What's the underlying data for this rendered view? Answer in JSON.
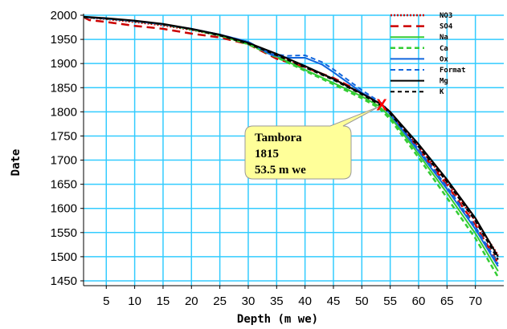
{
  "chart_data": {
    "type": "line",
    "xlabel": "Depth (m we)",
    "ylabel": "Date",
    "xlim": [
      1,
      75
    ],
    "ylim": [
      1440,
      2000
    ],
    "x_ticks": [
      5,
      10,
      15,
      20,
      25,
      30,
      35,
      40,
      45,
      50,
      55,
      60,
      65,
      70
    ],
    "y_ticks": [
      1450,
      1500,
      1550,
      1600,
      1650,
      1700,
      1750,
      1800,
      1850,
      1900,
      1950,
      2000
    ],
    "grid": true,
    "grid_color": "#33ccff",
    "legend_position": "top-right",
    "series": [
      {
        "name": "NO3",
        "color": "#cc0000",
        "dash": "2,2",
        "width": 2.5,
        "points": [
          [
            1,
            1996
          ],
          [
            5,
            1992
          ],
          [
            10,
            1986
          ],
          [
            15,
            1979
          ],
          [
            20,
            1970
          ],
          [
            25,
            1958
          ],
          [
            30,
            1942
          ],
          [
            35,
            1918
          ],
          [
            40,
            1893
          ],
          [
            45,
            1868
          ],
          [
            50,
            1838
          ],
          [
            53.5,
            1815
          ],
          [
            55,
            1800
          ],
          [
            60,
            1728
          ],
          [
            65,
            1655
          ],
          [
            70,
            1575
          ],
          [
            74,
            1503
          ]
        ]
      },
      {
        "name": "SO4",
        "color": "#cc0000",
        "dash": "10,6",
        "width": 2.5,
        "points": [
          [
            1,
            1996
          ],
          [
            2,
            1990
          ],
          [
            5,
            1986
          ],
          [
            10,
            1978
          ],
          [
            15,
            1972
          ],
          [
            20,
            1962
          ],
          [
            25,
            1954
          ],
          [
            30,
            1940
          ],
          [
            32,
            1928
          ],
          [
            35,
            1910
          ],
          [
            40,
            1892
          ],
          [
            45,
            1870
          ],
          [
            50,
            1840
          ],
          [
            53.5,
            1815
          ],
          [
            55,
            1797
          ],
          [
            60,
            1723
          ],
          [
            65,
            1648
          ],
          [
            70,
            1566
          ],
          [
            74,
            1486
          ]
        ]
      },
      {
        "name": "Na",
        "color": "#33cc33",
        "dash": "",
        "width": 2,
        "points": [
          [
            1,
            1996
          ],
          [
            5,
            1993
          ],
          [
            10,
            1988
          ],
          [
            15,
            1981
          ],
          [
            20,
            1971
          ],
          [
            25,
            1958
          ],
          [
            30,
            1940
          ],
          [
            35,
            1915
          ],
          [
            40,
            1887
          ],
          [
            45,
            1860
          ],
          [
            50,
            1832
          ],
          [
            53,
            1812
          ],
          [
            55,
            1790
          ],
          [
            60,
            1712
          ],
          [
            65,
            1632
          ],
          [
            70,
            1548
          ],
          [
            74,
            1470
          ]
        ]
      },
      {
        "name": "Ca",
        "color": "#33cc33",
        "dash": "6,4",
        "width": 2.5,
        "points": [
          [
            1,
            1996
          ],
          [
            5,
            1993
          ],
          [
            10,
            1988
          ],
          [
            15,
            1981
          ],
          [
            20,
            1971
          ],
          [
            25,
            1958
          ],
          [
            30,
            1940
          ],
          [
            35,
            1913
          ],
          [
            40,
            1885
          ],
          [
            45,
            1857
          ],
          [
            50,
            1828
          ],
          [
            53,
            1808
          ],
          [
            55,
            1785
          ],
          [
            60,
            1705
          ],
          [
            65,
            1622
          ],
          [
            70,
            1538
          ],
          [
            74,
            1458
          ]
        ]
      },
      {
        "name": "Ox",
        "color": "#1166dd",
        "dash": "",
        "width": 2,
        "points": [
          [
            1,
            1996
          ],
          [
            5,
            1993
          ],
          [
            10,
            1988
          ],
          [
            15,
            1981
          ],
          [
            20,
            1972
          ],
          [
            25,
            1960
          ],
          [
            30,
            1945
          ],
          [
            34,
            1918
          ],
          [
            37,
            1912
          ],
          [
            40,
            1912
          ],
          [
            43,
            1898
          ],
          [
            45,
            1882
          ],
          [
            50,
            1840
          ],
          [
            53.5,
            1815
          ],
          [
            55,
            1795
          ],
          [
            60,
            1718
          ],
          [
            65,
            1640
          ],
          [
            70,
            1557
          ],
          [
            74,
            1480
          ]
        ]
      },
      {
        "name": "Format",
        "color": "#1166dd",
        "dash": "6,4",
        "width": 2,
        "points": [
          [
            1,
            1996
          ],
          [
            5,
            1993
          ],
          [
            10,
            1988
          ],
          [
            15,
            1981
          ],
          [
            20,
            1972
          ],
          [
            25,
            1960
          ],
          [
            30,
            1945
          ],
          [
            34,
            1920
          ],
          [
            37,
            1916
          ],
          [
            40,
            1917
          ],
          [
            43,
            1903
          ],
          [
            45,
            1888
          ],
          [
            50,
            1845
          ],
          [
            53.5,
            1818
          ],
          [
            55,
            1798
          ],
          [
            60,
            1722
          ],
          [
            65,
            1645
          ],
          [
            70,
            1562
          ],
          [
            74,
            1485
          ]
        ]
      },
      {
        "name": "Mg",
        "color": "#000000",
        "dash": "",
        "width": 2,
        "points": [
          [
            1,
            1997
          ],
          [
            5,
            1994
          ],
          [
            10,
            1989
          ],
          [
            15,
            1982
          ],
          [
            20,
            1972
          ],
          [
            25,
            1960
          ],
          [
            30,
            1943
          ],
          [
            35,
            1920
          ],
          [
            40,
            1895
          ],
          [
            45,
            1868
          ],
          [
            50,
            1838
          ],
          [
            53.5,
            1815
          ],
          [
            55,
            1800
          ],
          [
            60,
            1733
          ],
          [
            65,
            1660
          ],
          [
            70,
            1580
          ],
          [
            74,
            1500
          ]
        ]
      },
      {
        "name": "K",
        "color": "#000000",
        "dash": "5,4",
        "width": 2,
        "points": [
          [
            1,
            1996
          ],
          [
            5,
            1993
          ],
          [
            10,
            1988
          ],
          [
            15,
            1981
          ],
          [
            20,
            1971
          ],
          [
            25,
            1958
          ],
          [
            30,
            1941
          ],
          [
            35,
            1917
          ],
          [
            40,
            1892
          ],
          [
            45,
            1866
          ],
          [
            50,
            1836
          ],
          [
            53.5,
            1812
          ],
          [
            55,
            1796
          ],
          [
            60,
            1728
          ],
          [
            65,
            1655
          ],
          [
            70,
            1574
          ],
          [
            74,
            1494
          ]
        ]
      }
    ],
    "marker": {
      "label": "X",
      "x": 53.5,
      "y": 1815,
      "color": "#ff0000"
    },
    "annotation": {
      "lines": [
        "Tambora",
        "1815",
        "53.5 m we"
      ],
      "x": 53.5,
      "y": 1815,
      "fill": "#ffff99"
    }
  }
}
